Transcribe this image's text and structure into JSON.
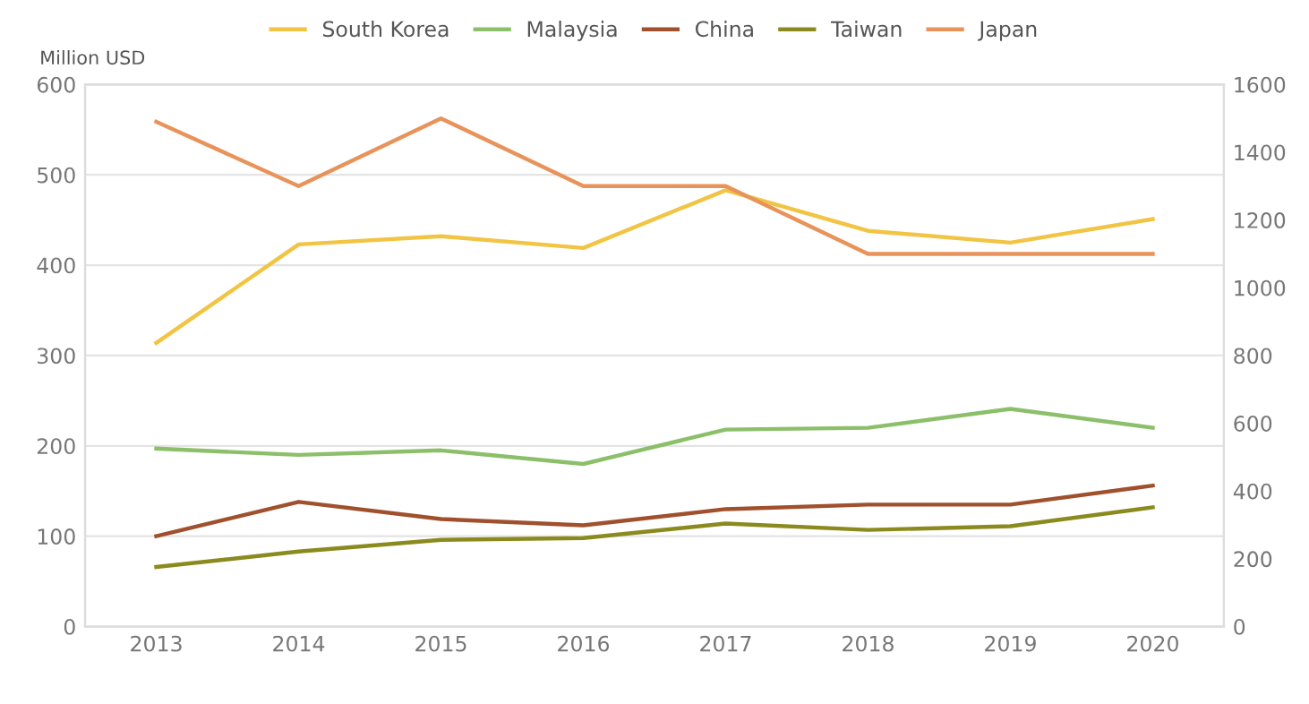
{
  "chart_data": {
    "type": "line",
    "ylabel": "Million USD",
    "categories": [
      "2013",
      "2014",
      "2015",
      "2016",
      "2017",
      "2018",
      "2019",
      "2020"
    ],
    "series": [
      {
        "name": "South Korea",
        "color": "#f2c443",
        "values": [
          314,
          423,
          432,
          419,
          483,
          438,
          425,
          451
        ]
      },
      {
        "name": "Malaysia",
        "color": "#8cbf6a",
        "values": [
          197,
          190,
          195,
          180,
          218,
          220,
          241,
          220
        ]
      },
      {
        "name": "China",
        "color": "#a0502c",
        "values": [
          100,
          138,
          119,
          112,
          130,
          135,
          135,
          156
        ]
      },
      {
        "name": "Taiwan",
        "color": "#8a8a1e",
        "values": [
          66,
          83,
          96,
          98,
          114,
          107,
          111,
          132
        ]
      },
      {
        "name": "Japan",
        "color": "#e8935a",
        "axis": "y2",
        "values": [
          1490,
          1300,
          1500,
          1300,
          1300,
          1100,
          1100,
          1100
        ]
      }
    ],
    "ylim": [
      0,
      600
    ],
    "yticks": [
      0,
      100,
      200,
      300,
      400,
      500,
      600
    ],
    "y2lim": [
      0,
      1600
    ],
    "y2ticks": [
      0,
      200,
      400,
      600,
      800,
      1000,
      1200,
      1400,
      1600
    ],
    "grid": "y",
    "legend": "top",
    "marker": "none",
    "line_style": "solid"
  }
}
